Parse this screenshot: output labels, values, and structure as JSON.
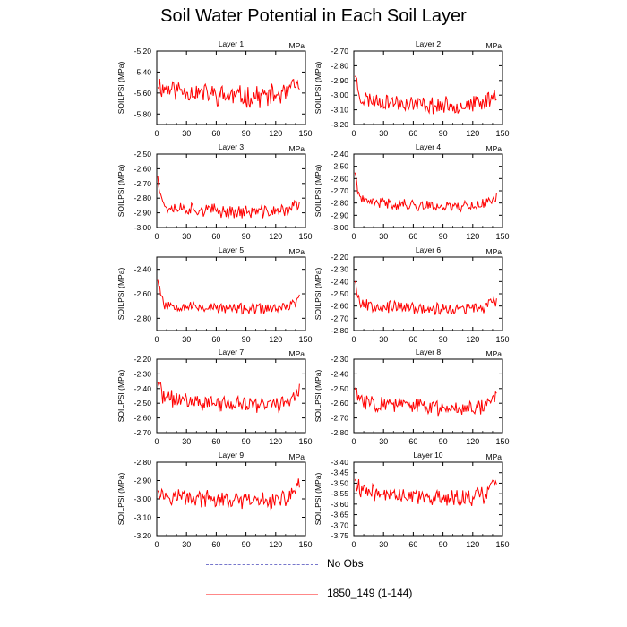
{
  "title": "Soil Water Potential in Each Soil Layer",
  "colors": {
    "series": "#ff0000",
    "obs": "#7777cc",
    "axis": "#000000"
  },
  "chart_data": [
    {
      "type": "line",
      "title": "Layer 1",
      "units": "MPa",
      "ylabel": "SOILPSI  (MPa)",
      "xlim": [
        0,
        150
      ],
      "xticks": [
        0,
        30,
        60,
        90,
        120,
        150
      ],
      "ylim": [
        -5.9,
        -5.2
      ],
      "yticks": [
        -5.2,
        -5.4,
        -5.6,
        -5.8
      ],
      "yticklabels": [
        "-5.20",
        "-5.40",
        "-5.60",
        "-5.80"
      ],
      "start": -5.45,
      "end": -5.52,
      "base": -5.58,
      "amp": 0.09,
      "seed": 11,
      "series": [
        {
          "name": "1850_149 (1-144)",
          "x_range": [
            1,
            144
          ]
        }
      ]
    },
    {
      "type": "line",
      "title": "Layer 2",
      "units": "MPa",
      "ylabel": "SOILPSI  (MPa)",
      "xlim": [
        0,
        150
      ],
      "xticks": [
        0,
        30,
        60,
        90,
        120,
        150
      ],
      "ylim": [
        -3.2,
        -2.7
      ],
      "yticks": [
        -2.7,
        -2.8,
        -2.9,
        -3.0,
        -3.1,
        -3.2
      ],
      "yticklabels": [
        "-2.70",
        "-2.80",
        "-2.90",
        "-3.00",
        "-3.10",
        "-3.20"
      ],
      "start": -2.76,
      "end": -2.99,
      "base": -3.04,
      "amp": 0.05,
      "seed": 23,
      "series": [
        {
          "name": "1850_149 (1-144)",
          "x_range": [
            1,
            144
          ]
        }
      ]
    },
    {
      "type": "line",
      "title": "Layer 3",
      "units": "MPa",
      "ylabel": "SOILPSI  (MPa)",
      "xlim": [
        0,
        150
      ],
      "xticks": [
        0,
        30,
        60,
        90,
        120,
        150
      ],
      "ylim": [
        -3.0,
        -2.5
      ],
      "yticks": [
        -2.5,
        -2.6,
        -2.7,
        -2.8,
        -2.9,
        -3.0
      ],
      "yticklabels": [
        "-2.50",
        "-2.60",
        "-2.70",
        "-2.80",
        "-2.90",
        "-3.00"
      ],
      "start": -2.54,
      "end": -2.84,
      "base": -2.87,
      "amp": 0.04,
      "seed": 37,
      "series": [
        {
          "name": "1850_149 (1-144)",
          "x_range": [
            1,
            144
          ]
        }
      ]
    },
    {
      "type": "line",
      "title": "Layer 4",
      "units": "MPa",
      "ylabel": "SOILPSI  (MPa)",
      "xlim": [
        0,
        150
      ],
      "xticks": [
        0,
        30,
        60,
        90,
        120,
        150
      ],
      "ylim": [
        -3.0,
        -2.4
      ],
      "yticks": [
        -2.4,
        -2.5,
        -2.6,
        -2.7,
        -2.8,
        -2.9,
        -3.0
      ],
      "yticklabels": [
        "-2.40",
        "-2.50",
        "-2.60",
        "-2.70",
        "-2.80",
        "-2.90",
        "-3.00"
      ],
      "start": -2.44,
      "end": -2.75,
      "base": -2.8,
      "amp": 0.04,
      "seed": 41,
      "series": [
        {
          "name": "1850_149 (1-144)",
          "x_range": [
            1,
            144
          ]
        }
      ]
    },
    {
      "type": "line",
      "title": "Layer 5",
      "units": "MPa",
      "ylabel": "SOILPSI  (MPa)",
      "xlim": [
        0,
        150
      ],
      "xticks": [
        0,
        30,
        60,
        90,
        120,
        150
      ],
      "ylim": [
        -2.9,
        -2.3
      ],
      "yticks": [
        -2.4,
        -2.6,
        -2.8
      ],
      "yticklabels": [
        "-2.40",
        "-2.60",
        "-2.80"
      ],
      "start": -2.36,
      "end": -2.65,
      "base": -2.7,
      "amp": 0.04,
      "seed": 53,
      "series": [
        {
          "name": "1850_149 (1-144)",
          "x_range": [
            1,
            144
          ]
        }
      ]
    },
    {
      "type": "line",
      "title": "Layer 6",
      "units": "MPa",
      "ylabel": "SOILPSI  (MPa)",
      "xlim": [
        0,
        150
      ],
      "xticks": [
        0,
        30,
        60,
        90,
        120,
        150
      ],
      "ylim": [
        -2.8,
        -2.2
      ],
      "yticks": [
        -2.2,
        -2.3,
        -2.4,
        -2.5,
        -2.6,
        -2.7,
        -2.8
      ],
      "yticklabels": [
        "-2.20",
        "-2.30",
        "-2.40",
        "-2.50",
        "-2.60",
        "-2.70",
        "-2.80"
      ],
      "start": -2.28,
      "end": -2.55,
      "base": -2.6,
      "amp": 0.045,
      "seed": 67,
      "series": [
        {
          "name": "1850_149 (1-144)",
          "x_range": [
            1,
            144
          ]
        }
      ]
    },
    {
      "type": "line",
      "title": "Layer 7",
      "units": "MPa",
      "ylabel": "SOILPSI  (MPa)",
      "xlim": [
        0,
        150
      ],
      "xticks": [
        0,
        30,
        60,
        90,
        120,
        150
      ],
      "ylim": [
        -2.7,
        -2.2
      ],
      "yticks": [
        -2.2,
        -2.3,
        -2.4,
        -2.5,
        -2.6,
        -2.7
      ],
      "yticklabels": [
        "-2.20",
        "-2.30",
        "-2.40",
        "-2.50",
        "-2.60",
        "-2.70"
      ],
      "start": -2.28,
      "end": -2.4,
      "base": -2.48,
      "amp": 0.05,
      "seed": 71,
      "series": [
        {
          "name": "1850_149 (1-144)",
          "x_range": [
            1,
            144
          ]
        }
      ]
    },
    {
      "type": "line",
      "title": "Layer 8",
      "units": "MPa",
      "ylabel": "SOILPSI  (MPa)",
      "xlim": [
        0,
        150
      ],
      "xticks": [
        0,
        30,
        60,
        90,
        120,
        150
      ],
      "ylim": [
        -2.8,
        -2.3
      ],
      "yticks": [
        -2.3,
        -2.4,
        -2.5,
        -2.6,
        -2.7,
        -2.8
      ],
      "yticklabels": [
        "-2.30",
        "-2.40",
        "-2.50",
        "-2.60",
        "-2.70",
        "-2.80"
      ],
      "start": -2.45,
      "end": -2.55,
      "base": -2.6,
      "amp": 0.05,
      "seed": 83,
      "series": [
        {
          "name": "1850_149 (1-144)",
          "x_range": [
            1,
            144
          ]
        }
      ]
    },
    {
      "type": "line",
      "title": "Layer 9",
      "units": "MPa",
      "ylabel": "SOILPSI  (MPa)",
      "xlim": [
        0,
        150
      ],
      "xticks": [
        0,
        30,
        60,
        90,
        120,
        150
      ],
      "ylim": [
        -3.2,
        -2.8
      ],
      "yticks": [
        -2.8,
        -2.9,
        -3.0,
        -3.1,
        -3.2
      ],
      "yticklabels": [
        "-2.80",
        "-2.90",
        "-3.00",
        "-3.10",
        "-3.20"
      ],
      "start": -2.9,
      "end": -2.92,
      "base": -2.99,
      "amp": 0.04,
      "seed": 97,
      "series": [
        {
          "name": "1850_149 (1-144)",
          "x_range": [
            1,
            144
          ]
        }
      ]
    },
    {
      "type": "line",
      "title": "Layer 10",
      "units": "MPa",
      "ylabel": "SOILPSI  (MPa)",
      "xlim": [
        0,
        150
      ],
      "xticks": [
        0,
        30,
        60,
        90,
        120,
        150
      ],
      "ylim": [
        -3.75,
        -3.4
      ],
      "yticks": [
        -3.4,
        -3.45,
        -3.5,
        -3.55,
        -3.6,
        -3.65,
        -3.7,
        -3.75
      ],
      "yticklabels": [
        "-3.40",
        "-3.45",
        "-3.50",
        "-3.55",
        "-3.60",
        "-3.65",
        "-3.70",
        "-3.75"
      ],
      "start": -3.43,
      "end": -3.5,
      "base": -3.55,
      "amp": 0.035,
      "seed": 109,
      "series": [
        {
          "name": "1850_149 (1-144)",
          "x_range": [
            1,
            144
          ]
        }
      ]
    }
  ],
  "legend": [
    {
      "label": "No Obs",
      "style": "dashed",
      "color": "#7777cc"
    },
    {
      "label": "1850_149 (1-144)",
      "style": "solid",
      "color": "#ff0000"
    }
  ]
}
